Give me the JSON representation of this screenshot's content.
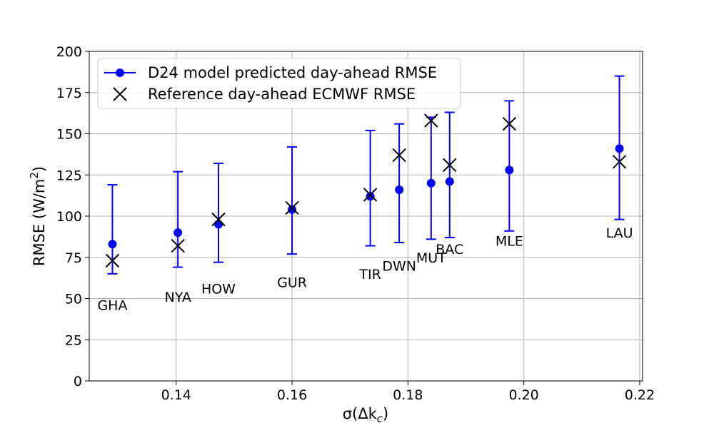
{
  "chart_data": {
    "type": "scatter",
    "xlabel": "σ(Δk",
    "xlabel_sub": "c",
    "xlabel_close": ")",
    "ylabel": "RMSE (W/m",
    "ylabel_sup": "2",
    "ylabel_close": ")",
    "xlim": [
      0.125,
      0.2205
    ],
    "ylim": [
      0,
      200
    ],
    "x_ticks": [
      0.14,
      0.16,
      0.18,
      0.2,
      0.22
    ],
    "x_tick_labels": [
      "0.14",
      "0.16",
      "0.18",
      "0.20",
      "0.22"
    ],
    "y_ticks": [
      0,
      25,
      50,
      75,
      100,
      125,
      150,
      175,
      200
    ],
    "y_tick_labels": [
      "0",
      "25",
      "50",
      "75",
      "100",
      "125",
      "150",
      "175",
      "200"
    ],
    "grid": true,
    "legend_position": "top-left",
    "series": [
      {
        "name": "D24 model predicted day-ahead RMSE",
        "marker": "circle",
        "color": "#0000ff"
      },
      {
        "name": "Reference day-ahead ECMWF RMSE",
        "marker": "x",
        "color": "#000000"
      }
    ],
    "stations": [
      {
        "label": "GHA",
        "x": 0.129,
        "pred": 83,
        "err_low": 65,
        "err_high": 119,
        "ref": 73,
        "label_y": 46
      },
      {
        "label": "NYA",
        "x": 0.1403,
        "pred": 90,
        "err_low": 69,
        "err_high": 127,
        "ref": 82,
        "label_y": 51
      },
      {
        "label": "HOW",
        "x": 0.1473,
        "pred": 95,
        "err_low": 72,
        "err_high": 132,
        "ref": 98,
        "label_y": 56
      },
      {
        "label": "GUR",
        "x": 0.16,
        "pred": 104,
        "err_low": 77,
        "err_high": 142,
        "ref": 105,
        "label_y": 60
      },
      {
        "label": "TIR",
        "x": 0.1735,
        "pred": 112,
        "err_low": 82,
        "err_high": 152,
        "ref": 113,
        "label_y": 65
      },
      {
        "label": "DWN",
        "x": 0.1785,
        "pred": 116,
        "err_low": 84,
        "err_high": 156,
        "ref": 137,
        "label_y": 70
      },
      {
        "label": "MUT",
        "x": 0.184,
        "pred": 120,
        "err_low": 86,
        "err_high": 160,
        "ref": 158,
        "label_y": 75
      },
      {
        "label": "BAC",
        "x": 0.1872,
        "pred": 121,
        "err_low": 87,
        "err_high": 163,
        "ref": 131,
        "label_y": 80
      },
      {
        "label": "MLE",
        "x": 0.1975,
        "pred": 128,
        "err_low": 91,
        "err_high": 170,
        "ref": 156,
        "label_y": 85
      },
      {
        "label": "LAU",
        "x": 0.2165,
        "pred": 141,
        "err_low": 98,
        "err_high": 185,
        "ref": 133,
        "label_y": 90
      }
    ]
  }
}
